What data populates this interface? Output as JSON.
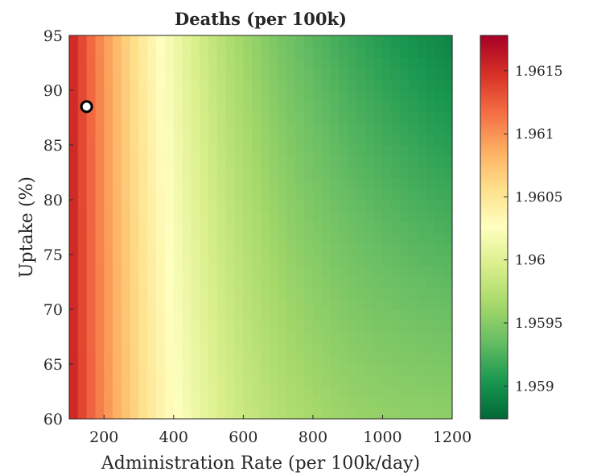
{
  "chart_data": {
    "type": "heatmap",
    "title": "Deaths (per 100k)",
    "xlabel": "Administration Rate (per 100k/day)",
    "ylabel": "Uptake (%)",
    "xlim": [
      100,
      1200
    ],
    "ylim": [
      60,
      95
    ],
    "x_ticks": [
      200,
      400,
      600,
      800,
      1000,
      1200
    ],
    "y_ticks": [
      60,
      65,
      70,
      75,
      80,
      85,
      90,
      95
    ],
    "x_tick_labels": [
      "200",
      "400",
      "600",
      "800",
      "1000",
      "1200"
    ],
    "y_tick_labels": [
      "60",
      "65",
      "70",
      "75",
      "80",
      "85",
      "90",
      "95"
    ],
    "colormap": "RdYlGn (reversed: low = green, high = red)",
    "color_range": [
      1.95874,
      1.96178
    ],
    "colorbar_ticks": [
      1.959,
      1.9595,
      1.96,
      1.9605,
      1.961,
      1.9615
    ],
    "colorbar_tick_labels": [
      "1.959",
      "1.9595",
      "1.96",
      "1.9605",
      "1.961",
      "1.9615"
    ],
    "grid_step_x": 25,
    "grid_step_y": 1,
    "marker": {
      "x": 150,
      "y": 88.5,
      "style": "white circle with black edge"
    },
    "colors": [
      "#006837",
      "#1a9850",
      "#66bd63",
      "#a6d96a",
      "#d9ef8b",
      "#ffffbf",
      "#fee08b",
      "#fdae61",
      "#f46d43",
      "#d73027",
      "#a50026"
    ]
  }
}
